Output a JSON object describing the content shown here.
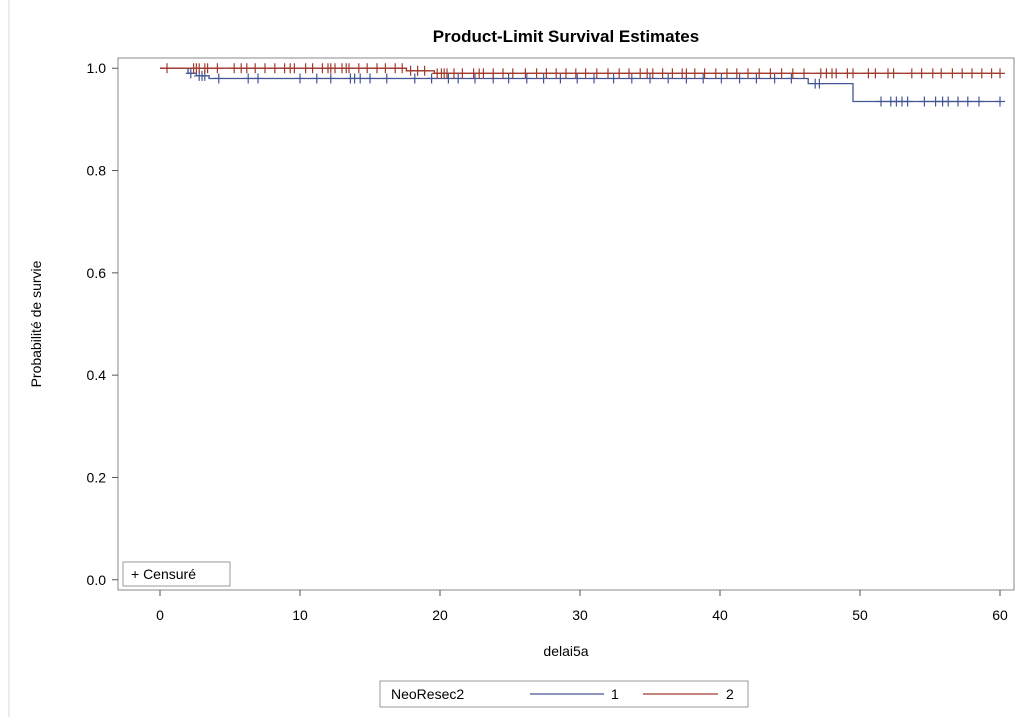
{
  "chart_data": {
    "type": "line",
    "subtype": "kaplan-meier",
    "title": "Product-Limit Survival Estimates",
    "xlabel": "delai5a",
    "ylabel": "Probabilité de survie",
    "xlim": [
      -3,
      61
    ],
    "ylim": [
      -0.02,
      1.02
    ],
    "xticks": [
      0,
      10,
      20,
      30,
      40,
      50,
      60
    ],
    "yticks": [
      0.0,
      0.2,
      0.4,
      0.6,
      0.8,
      1.0
    ],
    "xtick_labels": [
      "0",
      "10",
      "20",
      "30",
      "40",
      "50",
      "60"
    ],
    "ytick_labels": [
      "0.0",
      "0.2",
      "0.4",
      "0.6",
      "0.8",
      "1.0"
    ],
    "grid": false,
    "inset_legend": "+ Censuré",
    "legend": {
      "title": "NeoResec2",
      "position": "bottom"
    },
    "series": [
      {
        "name": "1",
        "color": "#445694",
        "steps": [
          [
            0,
            1.0
          ],
          [
            2.0,
            0.99
          ],
          [
            2.6,
            0.985
          ],
          [
            3.5,
            0.98
          ],
          [
            46.3,
            0.97
          ],
          [
            49.5,
            0.935
          ],
          [
            60,
            0.935
          ]
        ],
        "censored": [
          [
            2.2,
            0.99
          ],
          [
            2.8,
            0.985
          ],
          [
            3.0,
            0.985
          ],
          [
            3.2,
            0.985
          ],
          [
            4.2,
            0.98
          ],
          [
            6.3,
            0.98
          ],
          [
            7.0,
            0.98
          ],
          [
            10.0,
            0.98
          ],
          [
            11.2,
            0.98
          ],
          [
            12.2,
            0.98
          ],
          [
            13.6,
            0.98
          ],
          [
            13.9,
            0.98
          ],
          [
            14.3,
            0.98
          ],
          [
            15.0,
            0.98
          ],
          [
            16.2,
            0.98
          ],
          [
            18.2,
            0.98
          ],
          [
            19.4,
            0.98
          ],
          [
            20.6,
            0.98
          ],
          [
            21.3,
            0.98
          ],
          [
            22.5,
            0.98
          ],
          [
            23.8,
            0.98
          ],
          [
            24.9,
            0.98
          ],
          [
            26.2,
            0.98
          ],
          [
            27.4,
            0.98
          ],
          [
            28.6,
            0.98
          ],
          [
            29.8,
            0.98
          ],
          [
            31.0,
            0.98
          ],
          [
            32.4,
            0.98
          ],
          [
            33.7,
            0.98
          ],
          [
            35.0,
            0.98
          ],
          [
            36.3,
            0.98
          ],
          [
            37.6,
            0.98
          ],
          [
            38.8,
            0.98
          ],
          [
            40.1,
            0.98
          ],
          [
            41.4,
            0.98
          ],
          [
            42.6,
            0.98
          ],
          [
            43.9,
            0.98
          ],
          [
            45.1,
            0.98
          ],
          [
            46.8,
            0.97
          ],
          [
            47.1,
            0.97
          ],
          [
            51.5,
            0.935
          ],
          [
            52.2,
            0.935
          ],
          [
            52.6,
            0.935
          ],
          [
            53.0,
            0.935
          ],
          [
            53.4,
            0.935
          ],
          [
            54.6,
            0.935
          ],
          [
            55.4,
            0.935
          ],
          [
            55.9,
            0.935
          ],
          [
            56.3,
            0.935
          ],
          [
            57.0,
            0.935
          ],
          [
            57.7,
            0.935
          ],
          [
            58.5,
            0.935
          ],
          [
            60.0,
            0.935
          ]
        ]
      },
      {
        "name": "2",
        "color": "#A23A2E",
        "steps": [
          [
            0,
            1.0
          ],
          [
            17.6,
            0.995
          ],
          [
            19.6,
            0.99
          ],
          [
            60,
            0.99
          ]
        ],
        "censored": [
          [
            0.5,
            1.0
          ],
          [
            2.4,
            1.0
          ],
          [
            2.6,
            1.0
          ],
          [
            2.8,
            1.0
          ],
          [
            3.2,
            1.0
          ],
          [
            3.4,
            1.0
          ],
          [
            4.1,
            1.0
          ],
          [
            5.3,
            1.0
          ],
          [
            5.8,
            1.0
          ],
          [
            6.2,
            1.0
          ],
          [
            6.8,
            1.0
          ],
          [
            7.5,
            1.0
          ],
          [
            8.2,
            1.0
          ],
          [
            8.9,
            1.0
          ],
          [
            9.3,
            1.0
          ],
          [
            9.6,
            1.0
          ],
          [
            10.4,
            1.0
          ],
          [
            10.9,
            1.0
          ],
          [
            11.6,
            1.0
          ],
          [
            12.0,
            1.0
          ],
          [
            12.2,
            1.0
          ],
          [
            12.5,
            1.0
          ],
          [
            13.0,
            1.0
          ],
          [
            13.3,
            1.0
          ],
          [
            13.5,
            1.0
          ],
          [
            14.2,
            1.0
          ],
          [
            14.8,
            1.0
          ],
          [
            15.5,
            1.0
          ],
          [
            16.1,
            1.0
          ],
          [
            16.8,
            1.0
          ],
          [
            17.3,
            1.0
          ],
          [
            17.9,
            0.995
          ],
          [
            18.4,
            0.995
          ],
          [
            18.9,
            0.995
          ],
          [
            19.8,
            0.99
          ],
          [
            20.1,
            0.99
          ],
          [
            20.3,
            0.99
          ],
          [
            20.5,
            0.99
          ],
          [
            21.0,
            0.99
          ],
          [
            21.6,
            0.99
          ],
          [
            22.4,
            0.99
          ],
          [
            22.8,
            0.99
          ],
          [
            23.1,
            0.99
          ],
          [
            23.8,
            0.99
          ],
          [
            24.5,
            0.99
          ],
          [
            25.2,
            0.99
          ],
          [
            26.1,
            0.99
          ],
          [
            26.9,
            0.99
          ],
          [
            27.6,
            0.99
          ],
          [
            28.3,
            0.99
          ],
          [
            29.0,
            0.99
          ],
          [
            29.7,
            0.99
          ],
          [
            30.4,
            0.99
          ],
          [
            31.2,
            0.99
          ],
          [
            32.0,
            0.99
          ],
          [
            32.8,
            0.99
          ],
          [
            33.5,
            0.99
          ],
          [
            34.3,
            0.99
          ],
          [
            34.8,
            0.99
          ],
          [
            35.2,
            0.99
          ],
          [
            35.9,
            0.99
          ],
          [
            36.6,
            0.99
          ],
          [
            37.3,
            0.99
          ],
          [
            37.6,
            0.99
          ],
          [
            38.2,
            0.99
          ],
          [
            38.9,
            0.99
          ],
          [
            39.7,
            0.99
          ],
          [
            40.5,
            0.99
          ],
          [
            41.2,
            0.99
          ],
          [
            42.0,
            0.99
          ],
          [
            42.8,
            0.99
          ],
          [
            43.6,
            0.99
          ],
          [
            44.4,
            0.99
          ],
          [
            45.2,
            0.99
          ],
          [
            46.0,
            0.99
          ],
          [
            47.2,
            0.99
          ],
          [
            47.6,
            0.99
          ],
          [
            48.0,
            0.99
          ],
          [
            48.3,
            0.99
          ],
          [
            49.1,
            0.99
          ],
          [
            49.5,
            0.99
          ],
          [
            50.6,
            0.99
          ],
          [
            51.1,
            0.99
          ],
          [
            52.0,
            0.99
          ],
          [
            52.4,
            0.99
          ],
          [
            53.7,
            0.99
          ],
          [
            54.4,
            0.99
          ],
          [
            55.2,
            0.99
          ],
          [
            55.8,
            0.99
          ],
          [
            56.6,
            0.99
          ],
          [
            57.3,
            0.99
          ],
          [
            58.0,
            0.99
          ],
          [
            58.7,
            0.99
          ],
          [
            59.4,
            0.99
          ],
          [
            60.0,
            0.99
          ]
        ]
      }
    ]
  }
}
